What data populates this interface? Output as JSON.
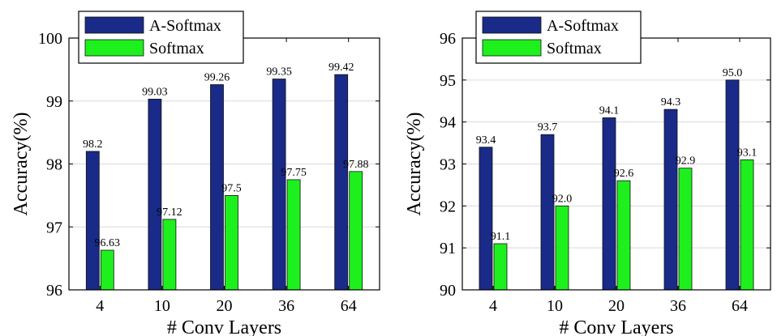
{
  "colors": {
    "a_softmax": "#1a2a88",
    "softmax": "#1ef01e"
  },
  "chart_data": [
    {
      "type": "bar",
      "categories": [
        "4",
        "10",
        "20",
        "36",
        "64"
      ],
      "series": [
        {
          "name": "A-Softmax",
          "values": [
            98.2,
            99.03,
            99.26,
            99.35,
            99.42
          ],
          "labels": [
            "98.2",
            "99.03",
            "99.26",
            "99.35",
            "99.42"
          ]
        },
        {
          "name": "Softmax",
          "values": [
            96.63,
            97.12,
            97.5,
            97.75,
            97.88
          ],
          "labels": [
            "96.63",
            "97.12",
            "97.5",
            "97.75",
            "97.88"
          ]
        }
      ],
      "xlabel": "# Conv Layers",
      "ylabel": "Accuracy(%)",
      "ylim": [
        96,
        100
      ],
      "yticks": [
        "96",
        "97",
        "98",
        "99",
        "100"
      ],
      "grid": true,
      "legend": "top-left"
    },
    {
      "type": "bar",
      "categories": [
        "4",
        "10",
        "20",
        "36",
        "64"
      ],
      "series": [
        {
          "name": "A-Softmax",
          "values": [
            93.4,
            93.7,
            94.1,
            94.3,
            95.0
          ],
          "labels": [
            "93.4",
            "93.7",
            "94.1",
            "94.3",
            "95.0"
          ]
        },
        {
          "name": "Softmax",
          "values": [
            91.1,
            92.0,
            92.6,
            92.9,
            93.1
          ],
          "labels": [
            "91.1",
            "92.0",
            "92.6",
            "92.9",
            "93.1"
          ]
        }
      ],
      "xlabel": "# Conv Layers",
      "ylabel": "Accuracy(%)",
      "ylim": [
        90,
        96
      ],
      "yticks": [
        "90",
        "91",
        "92",
        "93",
        "94",
        "95",
        "96"
      ],
      "grid": true,
      "legend": "top-left"
    }
  ]
}
